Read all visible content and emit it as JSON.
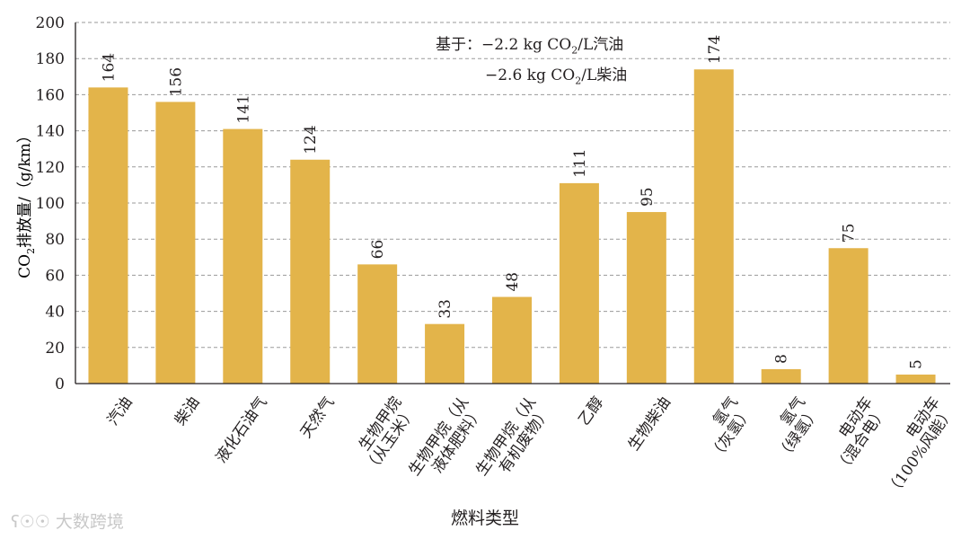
{
  "chart_data": {
    "type": "bar",
    "categories": [
      [
        "汽油"
      ],
      [
        "柴油"
      ],
      [
        "液化石油气"
      ],
      [
        "天然气"
      ],
      [
        "生物甲烷",
        "（从玉米）"
      ],
      [
        "生物甲烷（从",
        "液体肥料）"
      ],
      [
        "生物甲烷（从",
        "有机废物）"
      ],
      [
        "乙醇"
      ],
      [
        "生物柴油"
      ],
      [
        "氢气",
        "（灰氢）"
      ],
      [
        "氢气",
        "（绿氢）"
      ],
      [
        "电动车",
        "（混合电）"
      ],
      [
        "电动车",
        "（100%风能）"
      ]
    ],
    "values": [
      164,
      156,
      141,
      124,
      66,
      33,
      48,
      111,
      95,
      174,
      8,
      75,
      5
    ],
    "value_labels": [
      "164",
      "156",
      "141",
      "124",
      "66",
      "33",
      "48",
      "111",
      "95",
      "174",
      "8",
      "75",
      "5"
    ],
    "ylim": [
      0,
      200
    ],
    "yticks": [
      0,
      20,
      40,
      60,
      80,
      100,
      120,
      140,
      160,
      180,
      200
    ],
    "ylabel": "CO2排放量/（g/km）",
    "xlabel": "燃料类型",
    "grid": true,
    "bar_color": "#e3b44a",
    "annotation": [
      "基于：−2.2 kg CO2/L汽油",
      "−2.6 kg CO2/L柴油"
    ]
  },
  "ylabel_parts": {
    "co": "CO",
    "sub": "2",
    "rest": "排放量/（g/km）"
  },
  "annotation_html": {
    "line1_pre": "基于：−2.2 kg CO",
    "line1_sub": "2",
    "line1_post": "/L汽油",
    "line2_pre": "−2.6 kg CO",
    "line2_sub": "2",
    "line2_post": "/L柴油"
  },
  "watermark": "大数跨境"
}
